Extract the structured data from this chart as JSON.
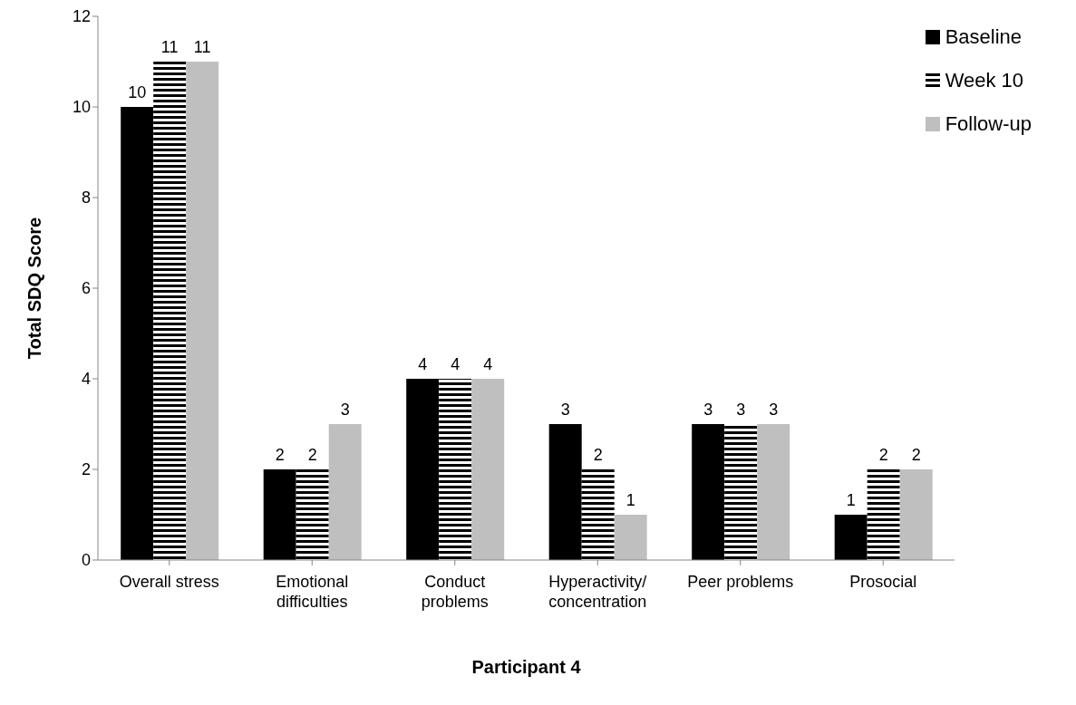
{
  "chart_data": {
    "type": "bar",
    "xlabel": "Participant 4",
    "ylabel": "Total SDQ Score",
    "categories": [
      "Overall stress",
      "Emotional difficulties",
      "Conduct problems",
      "Hyperactivity/concentration",
      "Peer problems",
      "Prosocial"
    ],
    "series": [
      {
        "name": "Baseline",
        "color": "#000000",
        "values": [
          10,
          2,
          4,
          3,
          3,
          1
        ]
      },
      {
        "name": "Week 10",
        "color": "#000000",
        "values": [
          11,
          2,
          4,
          2,
          3,
          2
        ]
      },
      {
        "name": "Follow-up",
        "color": "#bfbfbf",
        "values": [
          11,
          3,
          4,
          1,
          3,
          2
        ]
      }
    ],
    "ylim": [
      0,
      12
    ],
    "yticks": [
      0,
      2,
      4,
      6,
      8,
      10,
      12
    ],
    "grid": false,
    "legend": "top right",
    "data_labels": true
  }
}
